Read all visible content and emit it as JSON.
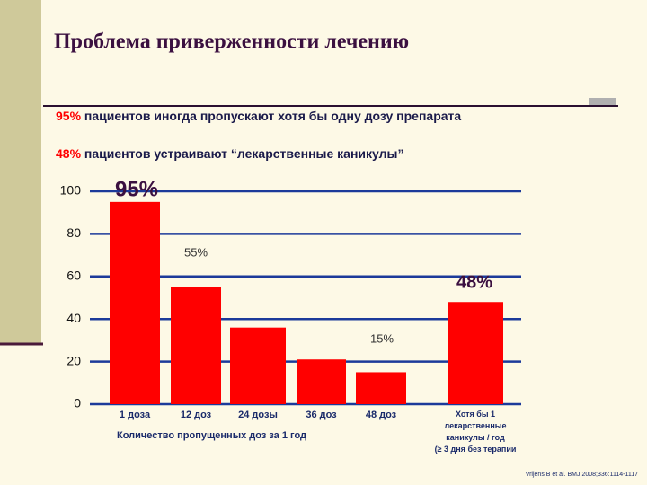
{
  "chart_data": {
    "type": "bar",
    "title": "Проблема приверженности  лечению",
    "notes": [
      {
        "highlight": "95%",
        "text": " пациентов  иногда пропускают хотя бы одну дозу препарата"
      },
      {
        "highlight": "48%",
        "text": " пациентов устраивают “лекарственные каникулы”"
      }
    ],
    "categories": [
      "1 доза",
      "12 доз",
      "24 дозы",
      "36 доз",
      "48 доз",
      "Хотя бы 1\nлекарственные\nканикулы / год\n(≥ 3 дня без терапии"
    ],
    "values": [
      95,
      55,
      36,
      21,
      15,
      48
    ],
    "value_labels": [
      "95%",
      "55%",
      null,
      null,
      "15%",
      "48%"
    ],
    "color": "#ff0000",
    "xlabel": "Количество пропущенных доз за 1 год",
    "source": "Vrijens B et al. BMJ.2008;336:1114-1117",
    "ylim": [
      0,
      100
    ],
    "yticks": [
      0,
      20,
      40,
      60,
      80,
      100
    ],
    "grid": true
  }
}
